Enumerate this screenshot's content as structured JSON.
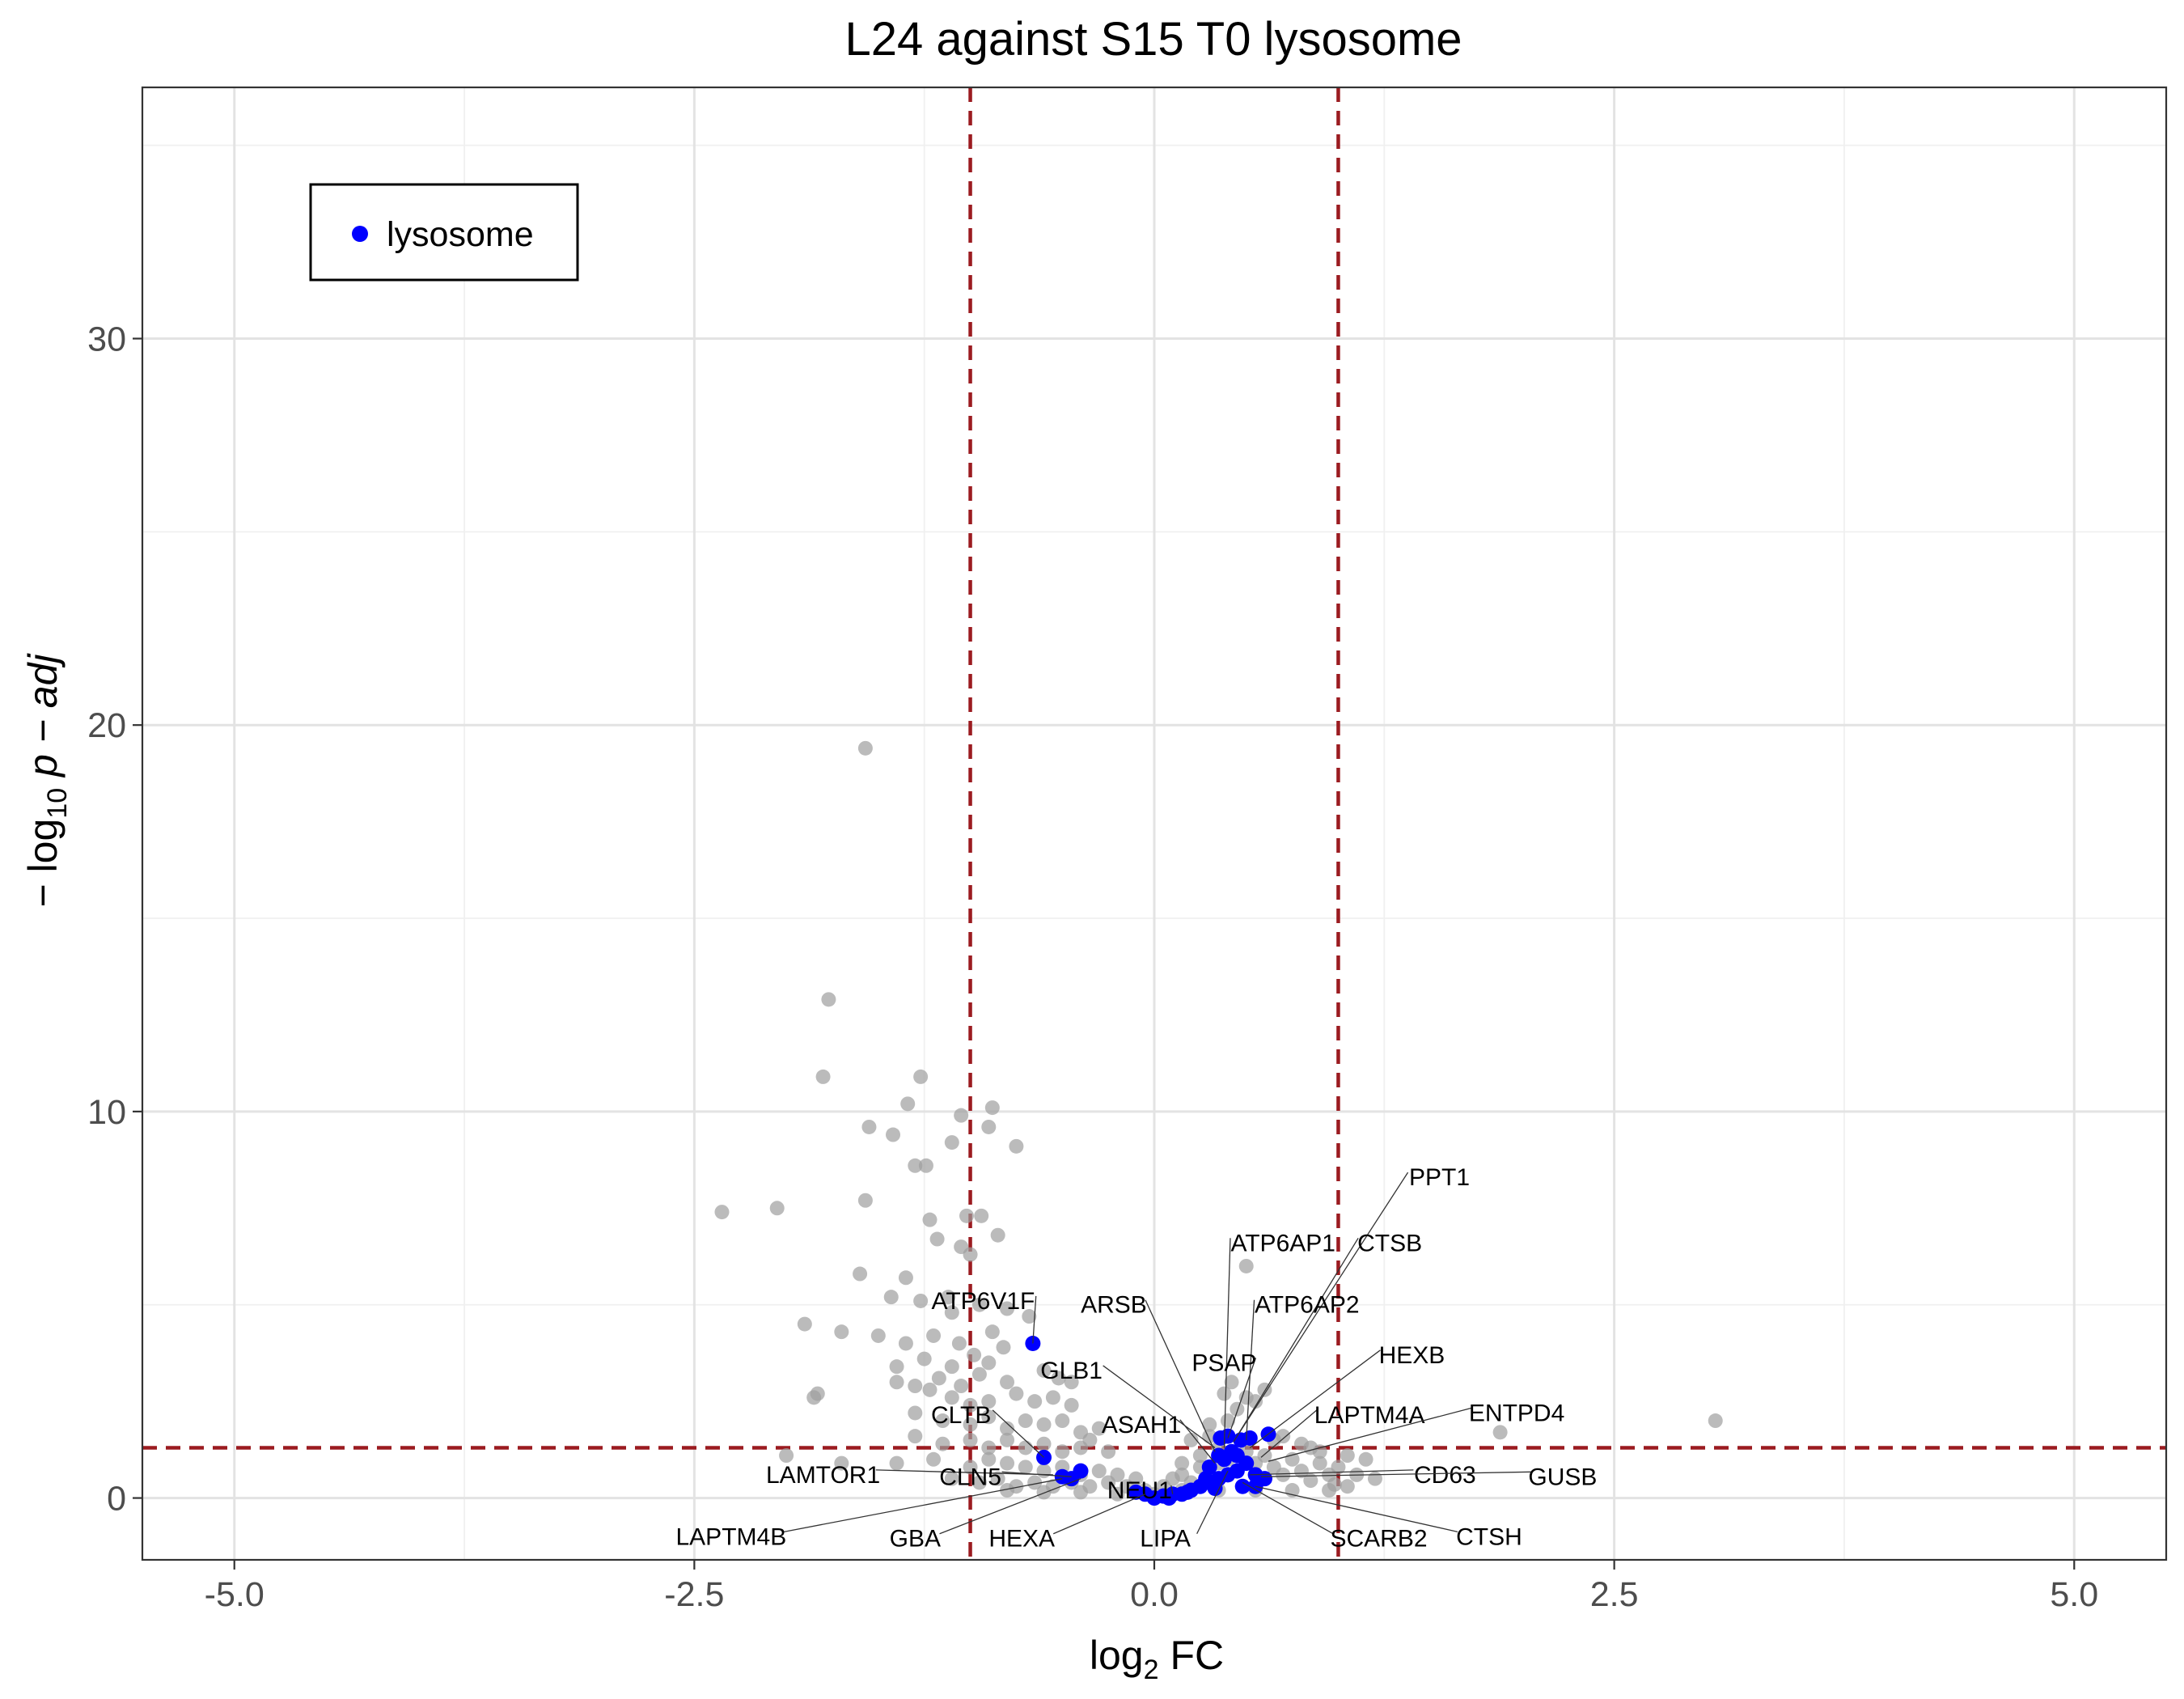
{
  "chart_data": {
    "type": "scatter",
    "title": "L24 against S15 T0 lysosome",
    "xlabel": {
      "base": "log",
      "sub": "2",
      "rest": " FC"
    },
    "ylabel": {
      "prefix": "− log",
      "sub": "10",
      "italic": " p − adj"
    },
    "xlim": [
      -5.5,
      5.5
    ],
    "ylim": [
      -1.6,
      36.5
    ],
    "x_ticks": [
      -5.0,
      -2.5,
      0.0,
      2.5,
      5.0
    ],
    "x_tick_labels": [
      "-5.0",
      "-2.5",
      "0.0",
      "2.5",
      "5.0"
    ],
    "y_ticks": [
      0,
      10,
      20,
      30
    ],
    "y_tick_labels": [
      "0",
      "10",
      "20",
      "30"
    ],
    "grid": true,
    "thresholds": {
      "x": [
        -1.0,
        1.0
      ],
      "y": 1.3,
      "color": "#9b1b20"
    },
    "legend": {
      "position": "top-left",
      "entries": [
        {
          "label": "lysosome",
          "color": "#0000ff"
        }
      ]
    },
    "colors": {
      "background_points": "#9e9e9e",
      "highlight": "#0000ff"
    },
    "series": [
      {
        "name": "",
        "color": "#9e9e9e",
        "points": [
          [
            -1.57,
            19.4
          ],
          [
            -1.77,
            12.9
          ],
          [
            -1.8,
            10.9
          ],
          [
            -1.27,
            10.9
          ],
          [
            -1.34,
            10.2
          ],
          [
            -1.55,
            9.6
          ],
          [
            -1.42,
            9.4
          ],
          [
            -1.05,
            9.9
          ],
          [
            -0.88,
            10.1
          ],
          [
            -0.9,
            9.6
          ],
          [
            -0.75,
            9.1
          ],
          [
            -1.24,
            8.6
          ],
          [
            -1.3,
            8.6
          ],
          [
            -1.1,
            9.2
          ],
          [
            -2.35,
            7.4
          ],
          [
            -2.05,
            7.5
          ],
          [
            -1.57,
            7.7
          ],
          [
            -1.22,
            7.2
          ],
          [
            -1.18,
            6.7
          ],
          [
            -1.02,
            7.3
          ],
          [
            -0.94,
            7.3
          ],
          [
            -0.85,
            6.8
          ],
          [
            -1.05,
            6.5
          ],
          [
            -1.0,
            6.3
          ],
          [
            -1.6,
            5.8
          ],
          [
            -1.43,
            5.2
          ],
          [
            -1.35,
            5.7
          ],
          [
            -1.27,
            5.1
          ],
          [
            -1.12,
            5.2
          ],
          [
            -1.1,
            4.8
          ],
          [
            -0.95,
            5.0
          ],
          [
            -0.8,
            4.9
          ],
          [
            -0.68,
            4.7
          ],
          [
            -0.88,
            4.3
          ],
          [
            -1.9,
            4.5
          ],
          [
            -1.7,
            4.3
          ],
          [
            -1.5,
            4.2
          ],
          [
            -1.35,
            4.0
          ],
          [
            -1.2,
            4.2
          ],
          [
            -1.06,
            4.0
          ],
          [
            -0.82,
            3.9
          ],
          [
            -1.4,
            3.4
          ],
          [
            -1.25,
            3.6
          ],
          [
            -1.1,
            3.4
          ],
          [
            -0.98,
            3.7
          ],
          [
            -0.9,
            3.5
          ],
          [
            -1.4,
            3.0
          ],
          [
            -1.3,
            2.9
          ],
          [
            -1.17,
            3.1
          ],
          [
            -1.05,
            2.9
          ],
          [
            -0.95,
            3.2
          ],
          [
            -0.8,
            3.0
          ],
          [
            -0.6,
            3.3
          ],
          [
            -0.52,
            3.1
          ],
          [
            -0.45,
            3.0
          ],
          [
            -1.83,
            2.7
          ],
          [
            -1.85,
            2.6
          ],
          [
            -1.22,
            2.8
          ],
          [
            -1.1,
            2.6
          ],
          [
            -1.0,
            2.4
          ],
          [
            -0.9,
            2.5
          ],
          [
            -0.75,
            2.7
          ],
          [
            -0.65,
            2.5
          ],
          [
            -0.55,
            2.6
          ],
          [
            -0.45,
            2.4
          ],
          [
            -1.3,
            2.2
          ],
          [
            -1.15,
            2.0
          ],
          [
            -1.0,
            1.9
          ],
          [
            -0.9,
            2.1
          ],
          [
            -0.8,
            1.8
          ],
          [
            -0.7,
            2.0
          ],
          [
            -0.6,
            1.9
          ],
          [
            -0.5,
            2.0
          ],
          [
            -0.4,
            1.7
          ],
          [
            -0.3,
            1.8
          ],
          [
            -1.3,
            1.6
          ],
          [
            -1.15,
            1.4
          ],
          [
            -1.0,
            1.5
          ],
          [
            -0.9,
            1.3
          ],
          [
            -0.8,
            1.5
          ],
          [
            -0.7,
            1.3
          ],
          [
            -0.6,
            1.4
          ],
          [
            -0.5,
            1.2
          ],
          [
            -0.4,
            1.3
          ],
          [
            -0.35,
            1.5
          ],
          [
            -0.25,
            1.2
          ],
          [
            -2.0,
            1.1
          ],
          [
            -1.7,
            0.9
          ],
          [
            -1.4,
            0.9
          ],
          [
            -1.2,
            1.0
          ],
          [
            -1.0,
            0.8
          ],
          [
            -0.9,
            1.0
          ],
          [
            -0.8,
            0.9
          ],
          [
            -0.7,
            0.8
          ],
          [
            -0.6,
            0.7
          ],
          [
            -0.5,
            0.8
          ],
          [
            -0.4,
            0.6
          ],
          [
            -0.3,
            0.7
          ],
          [
            -0.2,
            0.6
          ],
          [
            -0.1,
            0.5
          ],
          [
            -1.1,
            0.5
          ],
          [
            -0.95,
            0.4
          ],
          [
            -0.85,
            0.5
          ],
          [
            -0.75,
            0.3
          ],
          [
            -0.65,
            0.4
          ],
          [
            -0.55,
            0.3
          ],
          [
            -0.45,
            0.4
          ],
          [
            -0.35,
            0.3
          ],
          [
            -0.25,
            0.4
          ],
          [
            -0.15,
            0.3
          ],
          [
            -0.05,
            0.2
          ],
          [
            -0.8,
            0.2
          ],
          [
            -0.6,
            0.15
          ],
          [
            -0.4,
            0.15
          ],
          [
            -0.2,
            0.1
          ],
          [
            0.0,
            0.1
          ],
          [
            0.05,
            0.3
          ],
          [
            0.1,
            0.5
          ],
          [
            0.15,
            0.6
          ],
          [
            0.2,
            0.4
          ],
          [
            0.25,
            0.8
          ],
          [
            0.3,
            0.6
          ],
          [
            0.35,
            0.9
          ],
          [
            0.4,
            1.0
          ],
          [
            0.45,
            0.7
          ],
          [
            0.5,
            1.2
          ],
          [
            0.55,
            0.9
          ],
          [
            0.6,
            1.1
          ],
          [
            0.65,
            0.8
          ],
          [
            0.7,
            0.6
          ],
          [
            0.75,
            1.0
          ],
          [
            0.8,
            0.7
          ],
          [
            0.85,
            1.3
          ],
          [
            0.9,
            0.9
          ],
          [
            0.95,
            0.6
          ],
          [
            1.0,
            0.8
          ],
          [
            1.05,
            1.1
          ],
          [
            1.1,
            0.6
          ],
          [
            0.2,
            1.5
          ],
          [
            0.3,
            1.6
          ],
          [
            0.4,
            2.0
          ],
          [
            0.45,
            2.3
          ],
          [
            0.5,
            2.6
          ],
          [
            0.55,
            2.5
          ],
          [
            0.6,
            2.8
          ],
          [
            0.38,
            2.7
          ],
          [
            0.42,
            3.0
          ],
          [
            0.5,
            6.0
          ],
          [
            0.3,
            1.9
          ],
          [
            0.35,
            1.3
          ],
          [
            0.25,
            1.1
          ],
          [
            0.15,
            0.9
          ],
          [
            0.65,
            1.5
          ],
          [
            0.7,
            1.6
          ],
          [
            0.8,
            1.4
          ],
          [
            0.9,
            1.2
          ],
          [
            1.15,
            1.0
          ],
          [
            1.05,
            0.3
          ],
          [
            0.95,
            0.2
          ],
          [
            0.75,
            0.2
          ],
          [
            0.55,
            0.2
          ],
          [
            0.35,
            0.2
          ],
          [
            0.15,
            0.2
          ],
          [
            1.88,
            1.7
          ],
          [
            3.05,
            2.0
          ],
          [
            1.2,
            0.5
          ],
          [
            0.98,
            0.35
          ],
          [
            0.85,
            0.45
          ]
        ]
      },
      {
        "name": "lysosome",
        "color": "#0000ff",
        "points": [
          [
            -0.66,
            4.0
          ],
          [
            -0.6,
            1.05
          ],
          [
            -0.4,
            0.7
          ],
          [
            -0.5,
            0.55
          ],
          [
            -0.45,
            0.5
          ],
          [
            -0.1,
            0.15
          ],
          [
            -0.05,
            0.1
          ],
          [
            0.0,
            0.0
          ],
          [
            0.05,
            0.05
          ],
          [
            0.1,
            0.1
          ],
          [
            0.15,
            0.1
          ],
          [
            0.2,
            0.2
          ],
          [
            0.25,
            0.3
          ],
          [
            0.3,
            0.4
          ],
          [
            0.35,
            0.5
          ],
          [
            0.4,
            0.6
          ],
          [
            0.45,
            0.7
          ],
          [
            0.3,
            0.8
          ],
          [
            0.38,
            1.0
          ],
          [
            0.42,
            1.2
          ],
          [
            0.36,
            1.55
          ],
          [
            0.4,
            1.6
          ],
          [
            0.47,
            1.5
          ],
          [
            0.52,
            1.55
          ],
          [
            0.62,
            1.65
          ],
          [
            0.45,
            1.1
          ],
          [
            0.5,
            0.9
          ],
          [
            0.55,
            0.6
          ],
          [
            0.6,
            0.5
          ],
          [
            0.35,
            1.1
          ],
          [
            0.28,
            0.5
          ],
          [
            0.18,
            0.15
          ],
          [
            0.08,
            0.0
          ],
          [
            0.48,
            0.3
          ],
          [
            0.55,
            0.3
          ],
          [
            0.33,
            0.25
          ]
        ]
      }
    ],
    "annotations": [
      {
        "label": "PPT1",
        "x": 0.43,
        "y": 1.45,
        "lx": 1.55,
        "ly": 8.3
      },
      {
        "label": "ATP6AP1",
        "x": 0.38,
        "y": 1.3,
        "lx": 0.7,
        "ly": 6.6
      },
      {
        "label": "CTSB",
        "x": 0.45,
        "y": 1.6,
        "lx": 1.28,
        "ly": 6.6
      },
      {
        "label": "ATP6V1F",
        "x": -0.66,
        "y": 4.0,
        "lx": -0.93,
        "ly": 5.1
      },
      {
        "label": "ARSB",
        "x": 0.33,
        "y": 1.2,
        "lx": -0.22,
        "ly": 5.0
      },
      {
        "label": "ATP6AP2",
        "x": 0.5,
        "y": 1.5,
        "lx": 0.83,
        "ly": 5.0
      },
      {
        "label": "HEXB",
        "x": 0.52,
        "y": 1.3,
        "lx": 1.4,
        "ly": 3.7
      },
      {
        "label": "PSAP",
        "x": 0.4,
        "y": 1.55,
        "lx": 0.38,
        "ly": 3.5
      },
      {
        "label": "GLB1",
        "x": 0.33,
        "y": 1.3,
        "lx": -0.45,
        "ly": 3.3
      },
      {
        "label": "LAPTM4A",
        "x": 0.58,
        "y": 1.05,
        "lx": 1.17,
        "ly": 2.15
      },
      {
        "label": "ENTPD4",
        "x": 0.62,
        "y": 0.95,
        "lx": 1.97,
        "ly": 2.2
      },
      {
        "label": "CLTB",
        "x": -0.6,
        "y": 1.05,
        "lx": -1.05,
        "ly": 2.15
      },
      {
        "label": "ASAH1",
        "x": 0.33,
        "y": 0.9,
        "lx": -0.07,
        "ly": 1.9
      },
      {
        "label": "LAMTOR1",
        "x": -0.55,
        "y": 0.6,
        "lx": -1.8,
        "ly": 0.6
      },
      {
        "label": "CLN5",
        "x": -0.45,
        "y": 0.55,
        "lx": -1.0,
        "ly": 0.55
      },
      {
        "label": "CD63",
        "x": 0.52,
        "y": 0.6,
        "lx": 1.58,
        "ly": 0.6
      },
      {
        "label": "GUSB",
        "x": 0.58,
        "y": 0.55,
        "lx": 2.22,
        "ly": 0.55
      },
      {
        "label": "NEU1",
        "x": 0.1,
        "y": 0.1,
        "lx": -0.08,
        "ly": 0.2
      },
      {
        "label": "LAPTM4B",
        "x": -0.5,
        "y": 0.5,
        "lx": -2.3,
        "ly": -1.0
      },
      {
        "label": "GBA",
        "x": -0.4,
        "y": 0.5,
        "lx": -1.3,
        "ly": -1.05
      },
      {
        "label": "HEXA",
        "x": -0.05,
        "y": 0.1,
        "lx": -0.72,
        "ly": -1.05
      },
      {
        "label": "LIPA",
        "x": 0.4,
        "y": 0.7,
        "lx": 0.06,
        "ly": -1.05
      },
      {
        "label": "SCARB2",
        "x": 0.48,
        "y": 0.4,
        "lx": 1.22,
        "ly": -1.05
      },
      {
        "label": "CTSH",
        "x": 0.55,
        "y": 0.3,
        "lx": 1.82,
        "ly": -1.0
      }
    ]
  }
}
